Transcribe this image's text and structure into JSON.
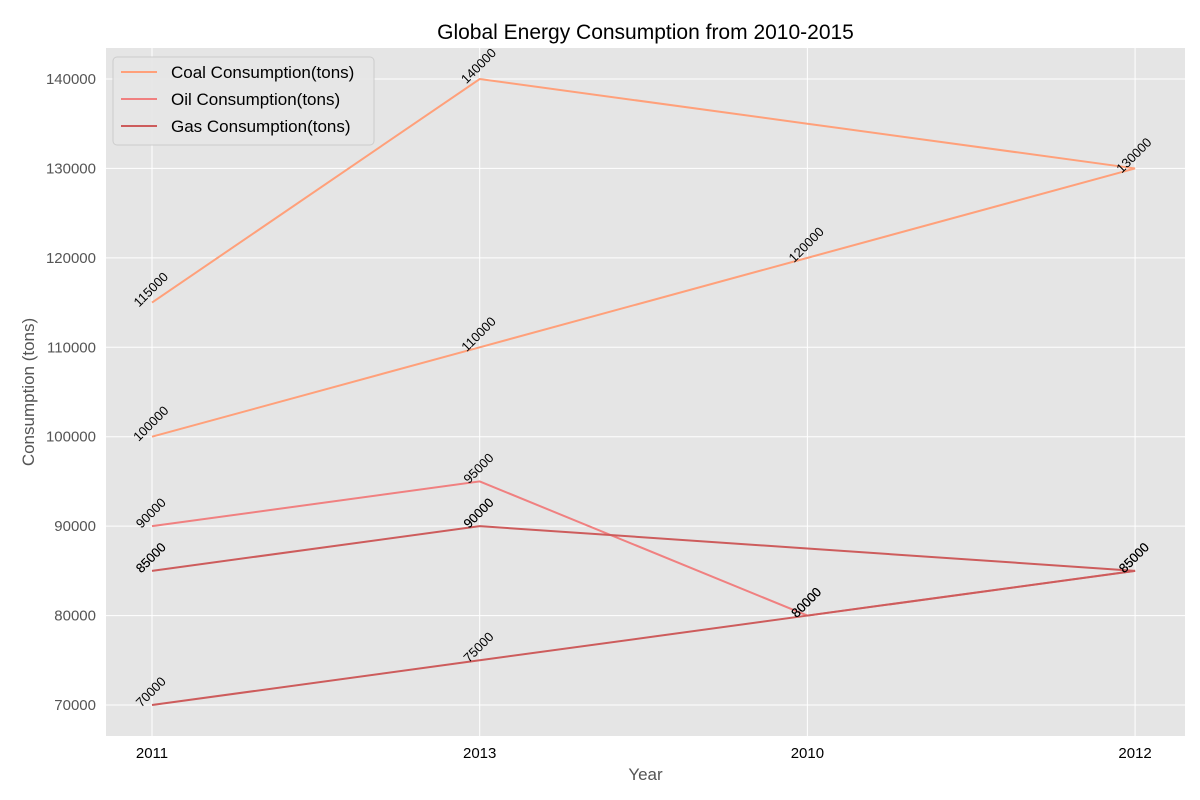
{
  "chart_data": {
    "type": "line",
    "title": "Global Energy Consumption from 2010-2015",
    "xlabel": "Year",
    "ylabel": "Consumption (tons)",
    "x": [
      "2011",
      "2013",
      "2010",
      "2012"
    ],
    "ylim": [
      66500,
      143500
    ],
    "yticks": [
      70000,
      80000,
      90000,
      100000,
      110000,
      120000,
      130000,
      140000
    ],
    "grid": true,
    "legend_position": "top-left",
    "series": [
      {
        "name": "Coal Consumption(tons)",
        "color": "#FFA07A",
        "segments": [
          [
            115000,
            140000,
            135000,
            130000
          ],
          [
            100000,
            110000,
            120000,
            130000
          ]
        ],
        "labels": [
          [
            115000,
            140000,
            null,
            130000
          ],
          [
            100000,
            110000,
            120000,
            null
          ]
        ]
      },
      {
        "name": "Oil Consumption(tons)",
        "color": "#F08080",
        "segments": [
          [
            90000,
            95000,
            80000,
            85000
          ]
        ],
        "labels": [
          [
            90000,
            95000,
            80000,
            85000
          ]
        ]
      },
      {
        "name": "Gas Consumption(tons)",
        "color": "#CD5C5C",
        "segments": [
          [
            85000,
            90000,
            87500,
            85000
          ],
          [
            70000,
            75000,
            80000,
            85000
          ]
        ],
        "labels": [
          [
            85000,
            90000,
            null,
            85000
          ],
          [
            70000,
            75000,
            80000,
            null
          ]
        ]
      }
    ],
    "extra_labels": [
      {
        "x": "2011",
        "value": 85000
      },
      {
        "x": "2013",
        "value": 90000
      },
      {
        "x": "2010",
        "value": 80000
      },
      {
        "x": "2012",
        "value": 85000
      }
    ]
  }
}
